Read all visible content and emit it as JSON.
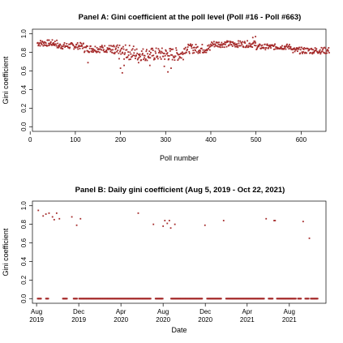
{
  "chart_data": [
    {
      "type": "scatter",
      "title": "Panel A: Gini coefficient at the poll level (Poll #16 - Poll #663)",
      "xlabel": "Poll number",
      "ylabel": "Gini coefficient",
      "xlim": [
        5,
        655
      ],
      "ylim": [
        -0.05,
        1.05
      ],
      "xticks": [
        0,
        100,
        200,
        300,
        400,
        500,
        600
      ],
      "yticks": [
        "0.0",
        "0.2",
        "0.4",
        "0.6",
        "0.8",
        "1.0"
      ],
      "point_color": "#a52a2a",
      "segments": [
        {
          "from": 16,
          "to": 60,
          "base": 0.9,
          "amp": 0.035
        },
        {
          "from": 60,
          "to": 120,
          "base": 0.87,
          "amp": 0.035
        },
        {
          "from": 120,
          "to": 180,
          "base": 0.84,
          "amp": 0.04
        },
        {
          "from": 180,
          "to": 230,
          "base": 0.8,
          "amp": 0.08
        },
        {
          "from": 230,
          "to": 340,
          "base": 0.78,
          "amp": 0.07
        },
        {
          "from": 340,
          "to": 400,
          "base": 0.84,
          "amp": 0.05
        },
        {
          "from": 400,
          "to": 500,
          "base": 0.89,
          "amp": 0.035
        },
        {
          "from": 500,
          "to": 580,
          "base": 0.86,
          "amp": 0.03
        },
        {
          "from": 580,
          "to": 663,
          "base": 0.82,
          "amp": 0.035
        }
      ],
      "outliers": [
        {
          "x": 128,
          "y": 0.69
        },
        {
          "x": 200,
          "y": 0.63
        },
        {
          "x": 204,
          "y": 0.58
        },
        {
          "x": 208,
          "y": 0.66
        },
        {
          "x": 240,
          "y": 0.69
        },
        {
          "x": 265,
          "y": 0.66
        },
        {
          "x": 297,
          "y": 0.65
        },
        {
          "x": 305,
          "y": 0.59
        },
        {
          "x": 312,
          "y": 0.63
        },
        {
          "x": 493,
          "y": 0.96
        },
        {
          "x": 499,
          "y": 0.97
        }
      ]
    },
    {
      "type": "scatter",
      "title": "Panel B: Daily gini coefficient (Aug 5, 2019 - Oct 22, 2021)",
      "xlabel": "Date",
      "ylabel": "Gini coefficient",
      "xlim": [
        "2019-07-20",
        "2021-11-15"
      ],
      "ylim": [
        -0.05,
        1.05
      ],
      "yticks": [
        "0.0",
        "0.2",
        "0.4",
        "0.6",
        "0.8",
        "1.0"
      ],
      "xticks": [
        {
          "date": "2019-08-01",
          "label": "Aug\n2019"
        },
        {
          "date": "2019-12-01",
          "label": "Dec\n2019"
        },
        {
          "date": "2020-04-01",
          "label": "Apr\n2020"
        },
        {
          "date": "2020-08-01",
          "label": "Aug\n2020"
        },
        {
          "date": "2020-12-01",
          "label": "Dec\n2020"
        },
        {
          "date": "2021-04-01",
          "label": "Apr\n2021"
        },
        {
          "date": "2021-08-01",
          "label": "Aug\n2021"
        }
      ],
      "point_color": "#a52a2a",
      "nonzero_points": [
        {
          "x": "2019-08-06",
          "y": 0.95
        },
        {
          "x": "2019-08-20",
          "y": 0.89
        },
        {
          "x": "2019-08-28",
          "y": 0.91
        },
        {
          "x": "2019-09-06",
          "y": 0.92
        },
        {
          "x": "2019-09-16",
          "y": 0.88
        },
        {
          "x": "2019-09-21",
          "y": 0.85
        },
        {
          "x": "2019-09-28",
          "y": 0.92
        },
        {
          "x": "2019-10-06",
          "y": 0.86
        },
        {
          "x": "2019-11-11",
          "y": 0.88
        },
        {
          "x": "2019-11-25",
          "y": 0.79
        },
        {
          "x": "2019-12-06",
          "y": 0.86
        },
        {
          "x": "2020-05-21",
          "y": 0.92
        },
        {
          "x": "2020-07-04",
          "y": 0.8
        },
        {
          "x": "2020-08-01",
          "y": 0.78
        },
        {
          "x": "2020-08-06",
          "y": 0.84
        },
        {
          "x": "2020-08-13",
          "y": 0.81
        },
        {
          "x": "2020-08-19",
          "y": 0.84
        },
        {
          "x": "2020-08-23",
          "y": 0.76
        },
        {
          "x": "2020-09-04",
          "y": 0.8
        },
        {
          "x": "2020-11-30",
          "y": 0.79
        },
        {
          "x": "2021-01-23",
          "y": 0.84
        },
        {
          "x": "2021-05-26",
          "y": 0.86
        },
        {
          "x": "2021-06-18",
          "y": 0.84
        },
        {
          "x": "2021-06-21",
          "y": 0.84
        },
        {
          "x": "2021-09-10",
          "y": 0.83
        },
        {
          "x": "2021-09-28",
          "y": 0.65
        }
      ],
      "zero_runs": [
        [
          "2019-08-04",
          "2019-08-14"
        ],
        [
          "2019-08-28",
          "2019-09-04"
        ],
        [
          "2019-10-16",
          "2019-10-28"
        ],
        [
          "2019-11-16",
          "2019-11-26"
        ],
        [
          "2019-12-02",
          "2020-06-26"
        ],
        [
          "2020-07-10",
          "2020-07-31"
        ],
        [
          "2020-08-24",
          "2020-11-22"
        ],
        [
          "2020-12-06",
          "2021-01-16"
        ],
        [
          "2021-01-30",
          "2021-05-20"
        ],
        [
          "2021-06-02",
          "2021-06-14"
        ],
        [
          "2021-06-26",
          "2021-08-20"
        ],
        [
          "2021-08-26",
          "2021-09-04"
        ],
        [
          "2021-09-16",
          "2021-09-26"
        ],
        [
          "2021-10-02",
          "2021-10-22"
        ]
      ]
    }
  ]
}
